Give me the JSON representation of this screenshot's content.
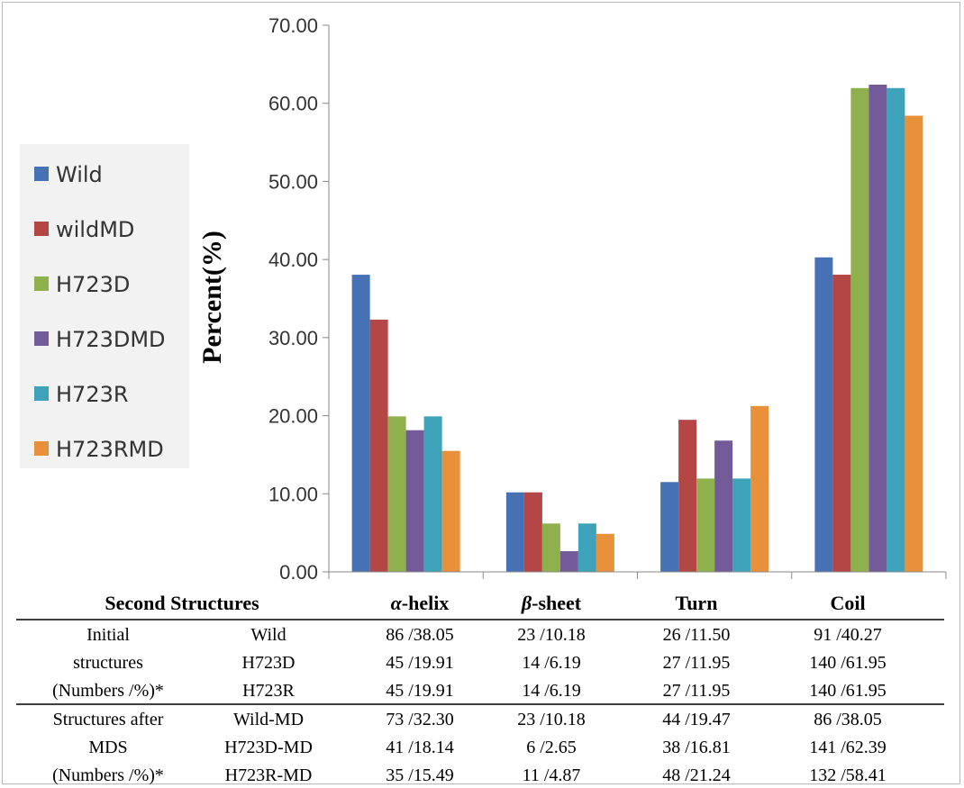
{
  "chart_data": {
    "type": "bar",
    "ylabel": "Percent(%)",
    "ylim": [
      0,
      70
    ],
    "yticks": [
      "0.00",
      "10.00",
      "20.00",
      "30.00",
      "40.00",
      "50.00",
      "60.00",
      "70.00"
    ],
    "categories": [
      "α-helix",
      "β-sheet",
      "Turn",
      "Coil"
    ],
    "legend_position": "left",
    "series": [
      {
        "name": "Wild",
        "color": "#4672b5",
        "values": [
          38.05,
          10.18,
          11.5,
          40.27
        ]
      },
      {
        "name": "wildMD",
        "color": "#b54646",
        "values": [
          32.3,
          10.18,
          19.47,
          38.05
        ]
      },
      {
        "name": "H723D",
        "color": "#8fb14d",
        "values": [
          19.91,
          6.19,
          11.95,
          61.95
        ]
      },
      {
        "name": "H723DMD",
        "color": "#735a99",
        "values": [
          18.14,
          2.65,
          16.81,
          62.39
        ]
      },
      {
        "name": "H723R",
        "color": "#3fa2bb",
        "values": [
          19.91,
          6.19,
          11.95,
          61.95
        ]
      },
      {
        "name": "H723RMD",
        "color": "#e8903a",
        "values": [
          15.49,
          4.87,
          21.24,
          58.41
        ]
      }
    ]
  },
  "table": {
    "header_label": "Second Structures",
    "header_cols": [
      {
        "sym": "α",
        "rest": "-helix"
      },
      {
        "sym": "β",
        "rest": "-sheet"
      },
      {
        "sym": "",
        "rest": "Turn"
      },
      {
        "sym": "",
        "rest": "Coil"
      }
    ],
    "groups": [
      {
        "label_lines": [
          "Initial",
          "structures",
          "(Numbers /%)*"
        ],
        "rows": [
          {
            "name": "Wild",
            "cells": [
              "86 /38.05",
              "23 /10.18",
              "26 /11.50",
              "91 /40.27"
            ]
          },
          {
            "name": "H723D",
            "cells": [
              "45 /19.91",
              "14 /6.19",
              "27 /11.95",
              "140 /61.95"
            ]
          },
          {
            "name": "H723R",
            "cells": [
              "45 /19.91",
              "14 /6.19",
              "27 /11.95",
              "140 /61.95"
            ]
          }
        ]
      },
      {
        "label_lines": [
          "Structures after",
          "MDS",
          "(Numbers /%)*"
        ],
        "rows": [
          {
            "name": "Wild-MD",
            "cells": [
              "73 /32.30",
              "23 /10.18",
              "44 /19.47",
              "86 /38.05"
            ]
          },
          {
            "name": "H723D-MD",
            "cells": [
              "41 /18.14",
              "6 /2.65",
              "38 /16.81",
              "141 /62.39"
            ]
          },
          {
            "name": "H723R-MD",
            "cells": [
              "35 /15.49",
              "11 /4.87",
              "48 /21.24",
              "132 /58.41"
            ]
          }
        ]
      }
    ]
  }
}
